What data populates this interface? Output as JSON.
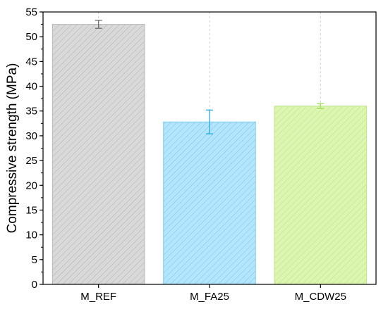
{
  "chart_data": {
    "type": "bar",
    "title": "",
    "xlabel": "",
    "ylabel": "Compressive strength (MPa)",
    "ylim": [
      0,
      55
    ],
    "yticks": [
      0,
      5,
      10,
      15,
      20,
      25,
      30,
      35,
      40,
      45,
      50,
      55
    ],
    "grid": true,
    "categories": [
      "M_REF",
      "M_FA25",
      "M_CDW25"
    ],
    "values": [
      52.5,
      32.8,
      36.0
    ],
    "errors": [
      0.8,
      2.4,
      0.5
    ],
    "colors": {
      "fills": [
        "#d9d9d9",
        "#b3e5fc",
        "#dcf5b0"
      ],
      "hatch": [
        "#b8b8b8",
        "#7fcbef",
        "#bde88a"
      ],
      "error_bars": [
        "#6f6f6f",
        "#29a8e0",
        "#9fdc5a"
      ],
      "axis": "#000000",
      "grid": "#d0d0d0"
    }
  }
}
